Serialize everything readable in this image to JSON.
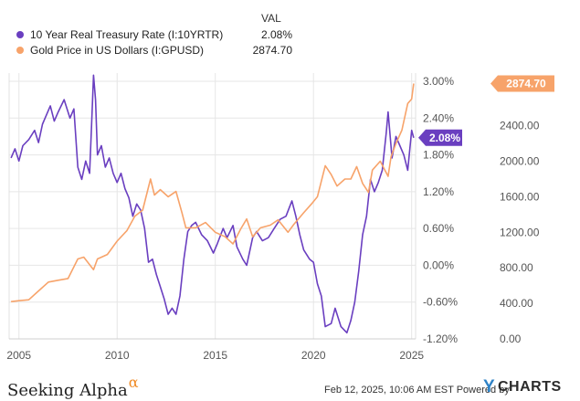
{
  "legend": {
    "val_header": "VAL",
    "rows": [
      {
        "name": "10 Year Real Treasury Rate (I:10YRTR)",
        "value": "2.08%",
        "color": "#6a3fc0"
      },
      {
        "name": "Gold Price in US Dollars (I:GPUSD)",
        "value": "2874.70",
        "color": "#f7a36a"
      }
    ]
  },
  "chart_data": {
    "type": "line",
    "x_axis": {
      "ticks": [
        "2005",
        "2010",
        "2015",
        "2020",
        "2025"
      ],
      "range": [
        2004.5,
        2025.2
      ]
    },
    "y_left": {
      "ticks": [
        "-1.20%",
        "-0.60%",
        "0.00%",
        "0.60%",
        "1.20%",
        "1.80%",
        "2.40%",
        "3.00%"
      ],
      "range": [
        -1.2,
        3.0
      ]
    },
    "y_right": {
      "ticks": [
        "0.00",
        "400.00",
        "800.00",
        "1200.00",
        "1600.00",
        "2000.00",
        "2400.00"
      ],
      "range": [
        0,
        2900
      ]
    },
    "grid": true,
    "series": [
      {
        "name": "10 Year Real Treasury Rate (I:10YRTR)",
        "axis": "left",
        "color": "#6a3fc0",
        "last_value_label": "2.08%",
        "points": [
          [
            2004.6,
            1.75
          ],
          [
            2004.8,
            1.9
          ],
          [
            2005.0,
            1.7
          ],
          [
            2005.2,
            1.95
          ],
          [
            2005.5,
            2.05
          ],
          [
            2005.8,
            2.2
          ],
          [
            2006.0,
            2.0
          ],
          [
            2006.2,
            2.3
          ],
          [
            2006.4,
            2.45
          ],
          [
            2006.6,
            2.6
          ],
          [
            2006.8,
            2.35
          ],
          [
            2007.0,
            2.5
          ],
          [
            2007.3,
            2.7
          ],
          [
            2007.6,
            2.4
          ],
          [
            2007.8,
            2.55
          ],
          [
            2008.0,
            1.6
          ],
          [
            2008.2,
            1.4
          ],
          [
            2008.4,
            1.7
          ],
          [
            2008.6,
            1.5
          ],
          [
            2008.7,
            2.3
          ],
          [
            2008.8,
            3.1
          ],
          [
            2008.9,
            2.7
          ],
          [
            2009.0,
            1.8
          ],
          [
            2009.2,
            1.95
          ],
          [
            2009.4,
            1.6
          ],
          [
            2009.6,
            1.75
          ],
          [
            2009.8,
            1.5
          ],
          [
            2010.0,
            1.35
          ],
          [
            2010.2,
            1.5
          ],
          [
            2010.4,
            1.25
          ],
          [
            2010.6,
            1.1
          ],
          [
            2010.8,
            0.8
          ],
          [
            2011.0,
            1.0
          ],
          [
            2011.2,
            0.9
          ],
          [
            2011.4,
            0.6
          ],
          [
            2011.6,
            0.05
          ],
          [
            2011.8,
            0.1
          ],
          [
            2012.0,
            -0.15
          ],
          [
            2012.2,
            -0.35
          ],
          [
            2012.4,
            -0.55
          ],
          [
            2012.6,
            -0.8
          ],
          [
            2012.8,
            -0.7
          ],
          [
            2013.0,
            -0.8
          ],
          [
            2013.2,
            -0.5
          ],
          [
            2013.4,
            0.1
          ],
          [
            2013.6,
            0.55
          ],
          [
            2013.8,
            0.65
          ],
          [
            2014.0,
            0.7
          ],
          [
            2014.3,
            0.5
          ],
          [
            2014.6,
            0.4
          ],
          [
            2014.9,
            0.2
          ],
          [
            2015.1,
            0.35
          ],
          [
            2015.4,
            0.6
          ],
          [
            2015.6,
            0.45
          ],
          [
            2015.9,
            0.65
          ],
          [
            2016.1,
            0.3
          ],
          [
            2016.4,
            0.1
          ],
          [
            2016.6,
            0.0
          ],
          [
            2016.9,
            0.45
          ],
          [
            2017.1,
            0.55
          ],
          [
            2017.4,
            0.4
          ],
          [
            2017.7,
            0.45
          ],
          [
            2018.0,
            0.6
          ],
          [
            2018.3,
            0.75
          ],
          [
            2018.6,
            0.8
          ],
          [
            2018.9,
            1.05
          ],
          [
            2019.1,
            0.8
          ],
          [
            2019.3,
            0.5
          ],
          [
            2019.5,
            0.25
          ],
          [
            2019.8,
            0.1
          ],
          [
            2020.0,
            0.05
          ],
          [
            2020.2,
            -0.3
          ],
          [
            2020.4,
            -0.5
          ],
          [
            2020.6,
            -1.0
          ],
          [
            2020.9,
            -0.95
          ],
          [
            2021.1,
            -0.7
          ],
          [
            2021.4,
            -1.0
          ],
          [
            2021.7,
            -1.1
          ],
          [
            2021.9,
            -0.9
          ],
          [
            2022.1,
            -0.6
          ],
          [
            2022.3,
            -0.1
          ],
          [
            2022.5,
            0.5
          ],
          [
            2022.7,
            0.8
          ],
          [
            2022.9,
            1.4
          ],
          [
            2023.1,
            1.2
          ],
          [
            2023.3,
            1.35
          ],
          [
            2023.5,
            1.55
          ],
          [
            2023.7,
            2.15
          ],
          [
            2023.8,
            2.5
          ],
          [
            2024.0,
            1.75
          ],
          [
            2024.2,
            2.1
          ],
          [
            2024.4,
            1.95
          ],
          [
            2024.6,
            1.8
          ],
          [
            2024.8,
            1.55
          ],
          [
            2025.0,
            2.2
          ],
          [
            2025.1,
            2.08
          ]
        ]
      },
      {
        "name": "Gold Price in US Dollars (I:GPUSD)",
        "axis": "right",
        "color": "#f7a36a",
        "last_value_label": "2874.70",
        "points": [
          [
            2004.6,
            420
          ],
          [
            2005.0,
            430
          ],
          [
            2005.5,
            440
          ],
          [
            2006.0,
            540
          ],
          [
            2006.5,
            640
          ],
          [
            2007.0,
            660
          ],
          [
            2007.5,
            680
          ],
          [
            2008.0,
            900
          ],
          [
            2008.3,
            920
          ],
          [
            2008.8,
            780
          ],
          [
            2009.0,
            900
          ],
          [
            2009.5,
            950
          ],
          [
            2010.0,
            1100
          ],
          [
            2010.5,
            1220
          ],
          [
            2010.9,
            1380
          ],
          [
            2011.3,
            1450
          ],
          [
            2011.7,
            1800
          ],
          [
            2011.9,
            1620
          ],
          [
            2012.2,
            1680
          ],
          [
            2012.6,
            1600
          ],
          [
            2013.0,
            1660
          ],
          [
            2013.3,
            1420
          ],
          [
            2013.5,
            1250
          ],
          [
            2014.0,
            1250
          ],
          [
            2014.5,
            1310
          ],
          [
            2015.0,
            1200
          ],
          [
            2015.5,
            1150
          ],
          [
            2015.9,
            1070
          ],
          [
            2016.3,
            1240
          ],
          [
            2016.6,
            1350
          ],
          [
            2016.9,
            1150
          ],
          [
            2017.3,
            1250
          ],
          [
            2017.8,
            1280
          ],
          [
            2018.2,
            1340
          ],
          [
            2018.7,
            1200
          ],
          [
            2019.0,
            1290
          ],
          [
            2019.5,
            1420
          ],
          [
            2019.9,
            1520
          ],
          [
            2020.2,
            1600
          ],
          [
            2020.6,
            1950
          ],
          [
            2020.9,
            1850
          ],
          [
            2021.2,
            1720
          ],
          [
            2021.6,
            1800
          ],
          [
            2021.9,
            1800
          ],
          [
            2022.2,
            1940
          ],
          [
            2022.5,
            1750
          ],
          [
            2022.8,
            1650
          ],
          [
            2023.0,
            1900
          ],
          [
            2023.4,
            2000
          ],
          [
            2023.8,
            1830
          ],
          [
            2023.95,
            2050
          ],
          [
            2024.2,
            2200
          ],
          [
            2024.5,
            2350
          ],
          [
            2024.8,
            2650
          ],
          [
            2025.0,
            2700
          ],
          [
            2025.1,
            2874.7
          ]
        ]
      }
    ]
  },
  "footer": {
    "brand": "Seeking Alpha",
    "brand_mark": "α",
    "timestamp": "Feb 12, 2025, 10:06 AM EST Powered by",
    "logo_y": "Y",
    "logo_rest": "CHARTS"
  }
}
